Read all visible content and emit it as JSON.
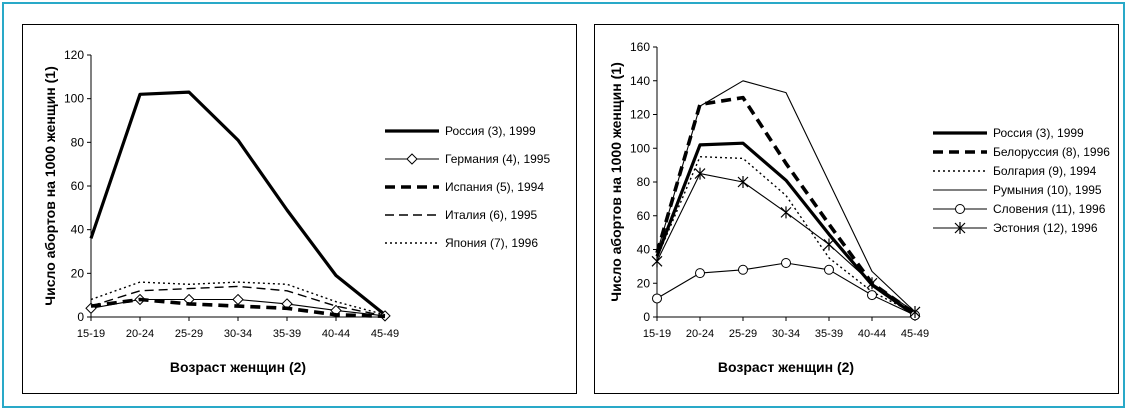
{
  "chart_data": [
    {
      "type": "line",
      "xlabel": "Возраст женщин (2)",
      "ylabel": "Число абортов на 1000 женщин (1)",
      "ylim": [
        0,
        120
      ],
      "yticks": [
        0,
        20,
        40,
        60,
        80,
        100,
        120
      ],
      "grid": false,
      "legend": "right",
      "categories": [
        "15-19",
        "20-24",
        "25-29",
        "30-34",
        "35-39",
        "40-44",
        "45-49"
      ],
      "series": [
        {
          "name": "Россия (3), 1999",
          "values": [
            36,
            102,
            103,
            81,
            49,
            19,
            1
          ],
          "style": "thick",
          "marker": "none"
        },
        {
          "name": "Германия (4), 1995",
          "values": [
            4,
            8,
            8,
            8,
            6,
            3,
            0.5
          ],
          "style": "thin",
          "marker": "diamond"
        },
        {
          "name": "Испания (5), 1994",
          "values": [
            5,
            8,
            6,
            5,
            4,
            1,
            0.3
          ],
          "style": "thick-dash",
          "marker": "none"
        },
        {
          "name": "Италия (6), 1995",
          "values": [
            5,
            12,
            13,
            14,
            12,
            5,
            0.5
          ],
          "style": "dash",
          "marker": "none"
        },
        {
          "name": "Япония (7), 1996",
          "values": [
            8,
            16,
            15,
            16,
            15,
            7,
            1
          ],
          "style": "dot",
          "marker": "none"
        }
      ]
    },
    {
      "type": "line",
      "xlabel": "Возраст женщин (2)",
      "ylabel": "Число абортов на 1000 женщин (1)",
      "ylim": [
        0,
        160
      ],
      "yticks": [
        0,
        20,
        40,
        60,
        80,
        100,
        120,
        140,
        160
      ],
      "grid": false,
      "legend": "right",
      "categories": [
        "15-19",
        "20-24",
        "25-29",
        "30-34",
        "35-39",
        "40-44",
        "45-49"
      ],
      "series": [
        {
          "name": "Россия (3), 1999",
          "values": [
            36,
            102,
            103,
            81,
            49,
            19,
            1
          ],
          "style": "thick",
          "marker": "none"
        },
        {
          "name": "Белоруссия (8), 1996",
          "values": [
            38,
            126,
            130,
            91,
            55,
            20,
            2
          ],
          "style": "thick-dash",
          "marker": "none"
        },
        {
          "name": "Болгария (9), 1994",
          "values": [
            35,
            95,
            94,
            72,
            35,
            15,
            2
          ],
          "style": "dot",
          "marker": "none"
        },
        {
          "name": "Румыния (10), 1995",
          "values": [
            38,
            125,
            140,
            133,
            80,
            27,
            3
          ],
          "style": "thin",
          "marker": "none"
        },
        {
          "name": "Словения (11), 1996",
          "values": [
            11,
            26,
            28,
            32,
            28,
            13,
            1
          ],
          "style": "thin",
          "marker": "circle"
        },
        {
          "name": "Эстония (12), 1996",
          "values": [
            33,
            85,
            80,
            62,
            43,
            20,
            3
          ],
          "style": "thin",
          "marker": "star"
        }
      ]
    }
  ]
}
